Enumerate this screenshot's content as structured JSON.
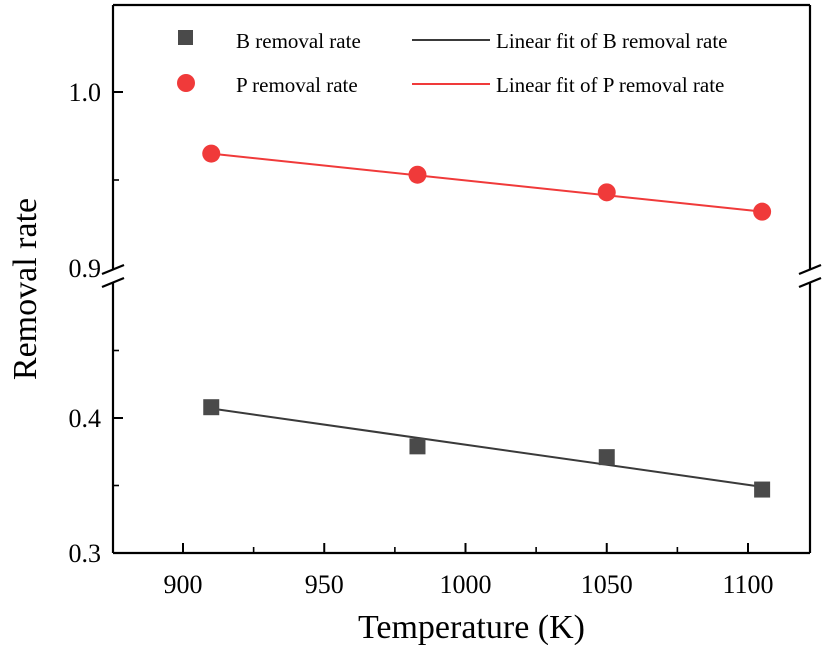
{
  "chart_data": {
    "type": "scatter",
    "xlabel": "Temperature (K)",
    "ylabel": "Removal rate",
    "xlim": [
      875,
      1112
    ],
    "x_ticks": [
      900,
      950,
      1000,
      1050,
      1100
    ],
    "y_broken_axis": true,
    "y_segments": [
      {
        "ylim": [
          0.3,
          0.5
        ],
        "major_ticks": [
          0.3,
          0.4
        ],
        "minor_ticks": [
          0.35,
          0.45
        ]
      },
      {
        "ylim": [
          0.9,
          1.04
        ],
        "major_ticks": [
          0.9,
          1.0
        ],
        "minor_ticks": [
          0.95
        ]
      }
    ],
    "y_tick_labels": [
      "0.3",
      "0.4",
      "0.9",
      "1.0"
    ],
    "x_tick_labels": [
      "900",
      "950",
      "1000",
      "1050",
      "1100"
    ],
    "legend_position": "top",
    "grid": false,
    "series": [
      {
        "name": "B removal rate",
        "kind": "scatter",
        "marker": "square",
        "color": "#4a4a4a",
        "x": [
          910,
          983,
          1050,
          1105
        ],
        "y": [
          0.408,
          0.379,
          0.371,
          0.347
        ]
      },
      {
        "name": "P removal rate",
        "kind": "scatter",
        "marker": "circle",
        "color": "#f03a3a",
        "x": [
          910,
          983,
          1050,
          1105
        ],
        "y": [
          0.965,
          0.953,
          0.943,
          0.932
        ]
      },
      {
        "name": "Linear fit of B removal rate",
        "kind": "line",
        "color": "#3a3a3a",
        "x": [
          910,
          1105
        ],
        "y": [
          0.407,
          0.349
        ]
      },
      {
        "name": "Linear fit of P removal rate",
        "kind": "line",
        "color": "#f03a3a",
        "x": [
          910,
          1105
        ],
        "y": [
          0.965,
          0.932
        ]
      }
    ]
  }
}
